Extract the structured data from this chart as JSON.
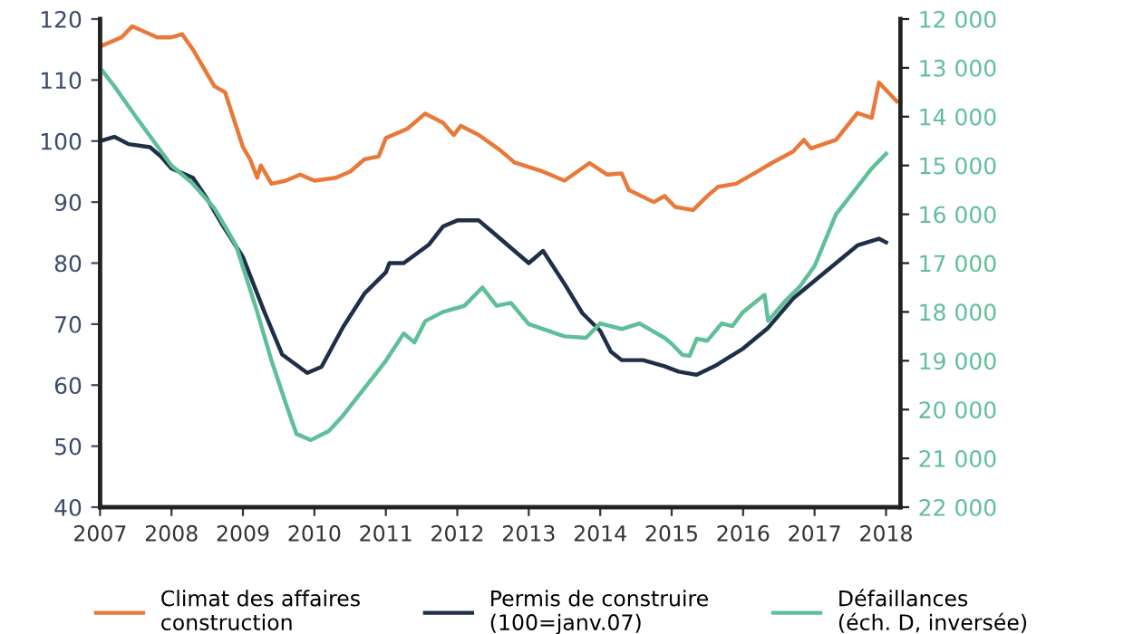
{
  "chart_data": {
    "type": "line",
    "xlim": [
      2007,
      2018.2
    ],
    "xticks": [
      2007,
      2008,
      2009,
      2010,
      2011,
      2012,
      2013,
      2014,
      2015,
      2016,
      2017,
      2018
    ],
    "ylim": [
      40,
      120
    ],
    "yticks": [
      40,
      50,
      60,
      70,
      80,
      90,
      100,
      110,
      120
    ],
    "y2lim": [
      22000,
      12000
    ],
    "y2ticks": [
      {
        "value": 12000,
        "label": "12 000"
      },
      {
        "value": 13000,
        "label": "13 000"
      },
      {
        "value": 14000,
        "label": "14 000"
      },
      {
        "value": 15000,
        "label": "15 000"
      },
      {
        "value": 16000,
        "label": "16 000"
      },
      {
        "value": 17000,
        "label": "17 000"
      },
      {
        "value": 18000,
        "label": "18 000"
      },
      {
        "value": 19000,
        "label": "19 000"
      },
      {
        "value": 20000,
        "label": "20 000"
      },
      {
        "value": 21000,
        "label": "21 000"
      },
      {
        "value": 22000,
        "label": "22 000"
      }
    ],
    "grid": false,
    "legend": "bottom",
    "series": [
      {
        "name": "Climat des affaires\nconstruction",
        "color": "#e8793a",
        "x": [
          2007.0,
          2007.3,
          2007.45,
          2007.8,
          2008.0,
          2008.15,
          2008.3,
          2008.6,
          2008.75,
          2009.0,
          2009.1,
          2009.2,
          2009.25,
          2009.4,
          2009.6,
          2009.8,
          2010.0,
          2010.3,
          2010.5,
          2010.7,
          2010.9,
          2011.0,
          2011.3,
          2011.55,
          2011.8,
          2011.95,
          2012.05,
          2012.3,
          2012.6,
          2012.8,
          2013.2,
          2013.5,
          2013.85,
          2014.1,
          2014.3,
          2014.4,
          2014.75,
          2014.9,
          2015.05,
          2015.3,
          2015.5,
          2015.65,
          2015.9,
          2016.2,
          2016.4,
          2016.7,
          2016.85,
          2016.95,
          2017.3,
          2017.6,
          2017.8,
          2017.9,
          2018.15
        ],
        "values": [
          115.5,
          117,
          118.8,
          117,
          117,
          117.5,
          115,
          109,
          108,
          99,
          97,
          94,
          96,
          93,
          93.5,
          94.5,
          93.5,
          94,
          95,
          97,
          97.5,
          100.5,
          102,
          104.5,
          103,
          101,
          102.5,
          101,
          98.5,
          96.5,
          95,
          93.5,
          96.4,
          94.5,
          94.7,
          92,
          90,
          91,
          89.2,
          88.7,
          91,
          92.5,
          93,
          95,
          96.4,
          98.3,
          100.2,
          98.8,
          100.2,
          104.6,
          103.8,
          109.6,
          106.5
        ]
      },
      {
        "name": "Permis de construire\n(100=janv.07)",
        "color": "#1f2f4a",
        "x": [
          2007.0,
          2007.2,
          2007.4,
          2007.7,
          2007.85,
          2008.0,
          2008.3,
          2008.5,
          2008.7,
          2009.0,
          2009.3,
          2009.55,
          2009.9,
          2010.1,
          2010.4,
          2010.7,
          2011.0,
          2011.05,
          2011.25,
          2011.6,
          2011.8,
          2012.0,
          2012.3,
          2012.5,
          2012.8,
          2013.0,
          2013.2,
          2013.5,
          2013.75,
          2014.0,
          2014.15,
          2014.3,
          2014.6,
          2014.9,
          2015.1,
          2015.35,
          2015.6,
          2016.0,
          2016.35,
          2016.7,
          2017.0,
          2017.3,
          2017.6,
          2017.9,
          2018.0
        ],
        "values": [
          100,
          100.7,
          99.5,
          99,
          97.5,
          95.5,
          94,
          90.5,
          86.5,
          81,
          72,
          65,
          62,
          63,
          69.5,
          75,
          78.5,
          80,
          80,
          83,
          86,
          87,
          87,
          85,
          82,
          80,
          82,
          76.6,
          71.8,
          68.9,
          65.5,
          64.1,
          64.1,
          63.1,
          62.2,
          61.7,
          63.1,
          66,
          69.4,
          74.2,
          77.1,
          80,
          82.9,
          84,
          83.4
        ]
      },
      {
        "name": "Défaillances\n(éch. D, inversée)",
        "color": "#5fbf99",
        "axis": "y2",
        "x": [
          2007.0,
          2007.2,
          2007.5,
          2007.75,
          2008.0,
          2008.3,
          2008.6,
          2008.9,
          2009.2,
          2009.4,
          2009.6,
          2009.75,
          2009.95,
          2010.2,
          2010.4,
          2010.6,
          2010.8,
          2011.0,
          2011.25,
          2011.4,
          2011.55,
          2011.8,
          2012.1,
          2012.35,
          2012.55,
          2012.75,
          2013.0,
          2013.25,
          2013.5,
          2013.8,
          2014.0,
          2014.3,
          2014.55,
          2014.9,
          2015.0,
          2015.15,
          2015.25,
          2015.35,
          2015.5,
          2015.7,
          2015.85,
          2016.0,
          2016.3,
          2016.35,
          2016.6,
          2016.8,
          2017.0,
          2017.3,
          2017.55,
          2017.8,
          2018.0
        ],
        "values": [
          13000,
          13375,
          14000,
          14500,
          15000,
          15375,
          15875,
          16625,
          18000,
          19000,
          19875,
          20500,
          20625,
          20440,
          20125,
          19750,
          19375,
          19000,
          18440,
          18625,
          18190,
          18000,
          17875,
          17500,
          17875,
          17815,
          18250,
          18375,
          18500,
          18530,
          18235,
          18350,
          18235,
          18530,
          18650,
          18880,
          18900,
          18550,
          18590,
          18235,
          18290,
          18000,
          17650,
          18180,
          17760,
          17470,
          17060,
          16000,
          15530,
          15060,
          14760
        ]
      }
    ]
  }
}
